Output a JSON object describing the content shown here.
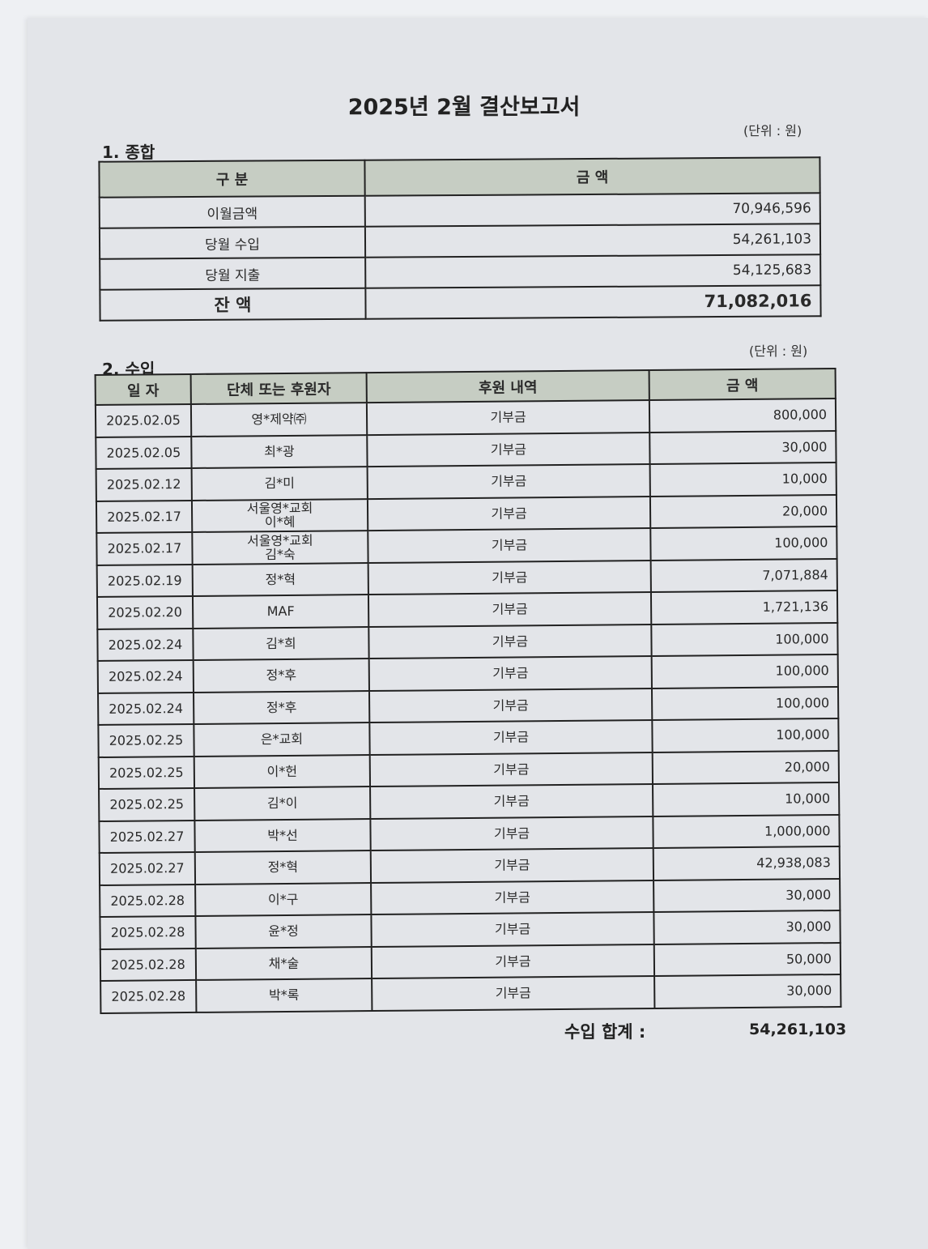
{
  "title": "2025년 2월 결산보고서",
  "summary": {
    "section_title": "1. 종합",
    "unit": "(단위 : 원)",
    "headers": [
      "구 분",
      "금 액"
    ],
    "rows": [
      {
        "label": "이월금액",
        "amount": "70,946,596"
      },
      {
        "label": "당월 수입",
        "amount": "54,261,103"
      },
      {
        "label": "당월 지출",
        "amount": "54,125,683"
      },
      {
        "label": "잔 액",
        "amount": "71,082,016"
      }
    ]
  },
  "income": {
    "section_title": "2. 수입",
    "unit": "(단위 : 원)",
    "headers": [
      "일 자",
      "단체 또는 후원자",
      "후원 내역",
      "금 액"
    ],
    "rows": [
      {
        "date": "2025.02.05",
        "donor": "영*제약㈜",
        "type": "기부금",
        "amount": "800,000"
      },
      {
        "date": "2025.02.05",
        "donor": "최*광",
        "type": "기부금",
        "amount": "30,000"
      },
      {
        "date": "2025.02.12",
        "donor": "김*미",
        "type": "기부금",
        "amount": "10,000"
      },
      {
        "date": "2025.02.17",
        "donor": "서울영*교회\n이*혜",
        "type": "기부금",
        "amount": "20,000"
      },
      {
        "date": "2025.02.17",
        "donor": "서울영*교회\n김*숙",
        "type": "기부금",
        "amount": "100,000"
      },
      {
        "date": "2025.02.19",
        "donor": "정*혁",
        "type": "기부금",
        "amount": "7,071,884"
      },
      {
        "date": "2025.02.20",
        "donor": "MAF",
        "type": "기부금",
        "amount": "1,721,136"
      },
      {
        "date": "2025.02.24",
        "donor": "김*희",
        "type": "기부금",
        "amount": "100,000"
      },
      {
        "date": "2025.02.24",
        "donor": "정*후",
        "type": "기부금",
        "amount": "100,000"
      },
      {
        "date": "2025.02.24",
        "donor": "정*후",
        "type": "기부금",
        "amount": "100,000"
      },
      {
        "date": "2025.02.25",
        "donor": "은*교회",
        "type": "기부금",
        "amount": "100,000"
      },
      {
        "date": "2025.02.25",
        "donor": "이*헌",
        "type": "기부금",
        "amount": "20,000"
      },
      {
        "date": "2025.02.25",
        "donor": "김*이",
        "type": "기부금",
        "amount": "10,000"
      },
      {
        "date": "2025.02.27",
        "donor": "박*선",
        "type": "기부금",
        "amount": "1,000,000"
      },
      {
        "date": "2025.02.27",
        "donor": "정*혁",
        "type": "기부금",
        "amount": "42,938,083"
      },
      {
        "date": "2025.02.28",
        "donor": "이*구",
        "type": "기부금",
        "amount": "30,000"
      },
      {
        "date": "2025.02.28",
        "donor": "윤*정",
        "type": "기부금",
        "amount": "30,000"
      },
      {
        "date": "2025.02.28",
        "donor": "채*술",
        "type": "기부금",
        "amount": "50,000"
      },
      {
        "date": "2025.02.28",
        "donor": "박*록",
        "type": "기부금",
        "amount": "30,000"
      }
    ],
    "total_label": "수입 합계 :",
    "total_amount": "54,261,103"
  }
}
